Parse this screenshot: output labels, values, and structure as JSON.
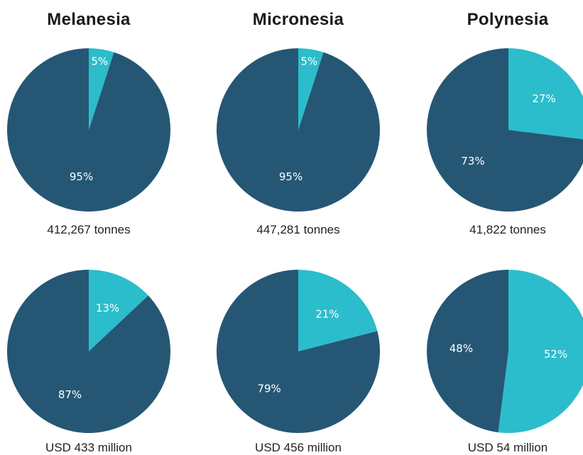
{
  "colors": {
    "major": "#255775",
    "minor": "#2bbdcb"
  },
  "columns": [
    {
      "title": "Melanesia"
    },
    {
      "title": "Micronesia"
    },
    {
      "title": "Polynesia"
    }
  ],
  "chart_data": [
    {
      "type": "pie",
      "group": "Melanesia",
      "row": "volume",
      "caption": "412,267 tonnes",
      "slices": [
        {
          "value": 5,
          "label": "5%",
          "color": "#2bbdcb"
        },
        {
          "value": 95,
          "label": "95%",
          "color": "#255775"
        }
      ]
    },
    {
      "type": "pie",
      "group": "Micronesia",
      "row": "volume",
      "caption": "447,281 tonnes",
      "slices": [
        {
          "value": 5,
          "label": "5%",
          "color": "#2bbdcb"
        },
        {
          "value": 95,
          "label": "95%",
          "color": "#255775"
        }
      ]
    },
    {
      "type": "pie",
      "group": "Polynesia",
      "row": "volume",
      "caption": "41,822 tonnes",
      "slices": [
        {
          "value": 27,
          "label": "27%",
          "color": "#2bbdcb"
        },
        {
          "value": 73,
          "label": "73%",
          "color": "#255775"
        }
      ]
    },
    {
      "type": "pie",
      "group": "Melanesia",
      "row": "value",
      "caption": "USD 433 million",
      "slices": [
        {
          "value": 13,
          "label": "13%",
          "color": "#2bbdcb"
        },
        {
          "value": 87,
          "label": "87%",
          "color": "#255775"
        }
      ]
    },
    {
      "type": "pie",
      "group": "Micronesia",
      "row": "value",
      "caption": "USD 456 million",
      "slices": [
        {
          "value": 21,
          "label": "21%",
          "color": "#2bbdcb"
        },
        {
          "value": 79,
          "label": "79%",
          "color": "#255775"
        }
      ]
    },
    {
      "type": "pie",
      "group": "Polynesia",
      "row": "value",
      "caption": "USD 54 million",
      "slices": [
        {
          "value": 52,
          "label": "52%",
          "color": "#2bbdcb"
        },
        {
          "value": 48,
          "label": "48%",
          "color": "#255775"
        }
      ]
    }
  ]
}
